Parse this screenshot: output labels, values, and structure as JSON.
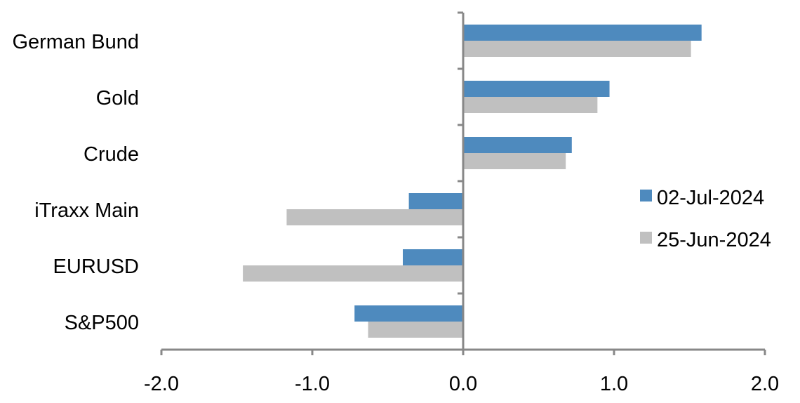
{
  "chart_data": {
    "type": "bar",
    "orientation": "horizontal",
    "categories": [
      "German Bund",
      "Gold",
      "Crude",
      "iTraxx Main",
      "EURUSD",
      "S&P500"
    ],
    "series": [
      {
        "name": "02-Jul-2024",
        "color": "#4E8ABE",
        "values": [
          1.58,
          0.97,
          0.72,
          -0.36,
          -0.4,
          -0.72
        ]
      },
      {
        "name": "25-Jun-2024",
        "color": "#C0C0C0",
        "values": [
          1.51,
          0.89,
          0.68,
          -1.17,
          -1.46,
          -0.63
        ]
      }
    ],
    "xlim": [
      -2.0,
      2.0
    ],
    "xticks": [
      "-2.0",
      "-1.0",
      "0.0",
      "1.0",
      "2.0"
    ],
    "xtick_values": [
      -2,
      -1,
      0,
      1,
      2
    ],
    "grid": false,
    "legend_position": "right",
    "title": "",
    "xlabel": "",
    "ylabel": ""
  }
}
